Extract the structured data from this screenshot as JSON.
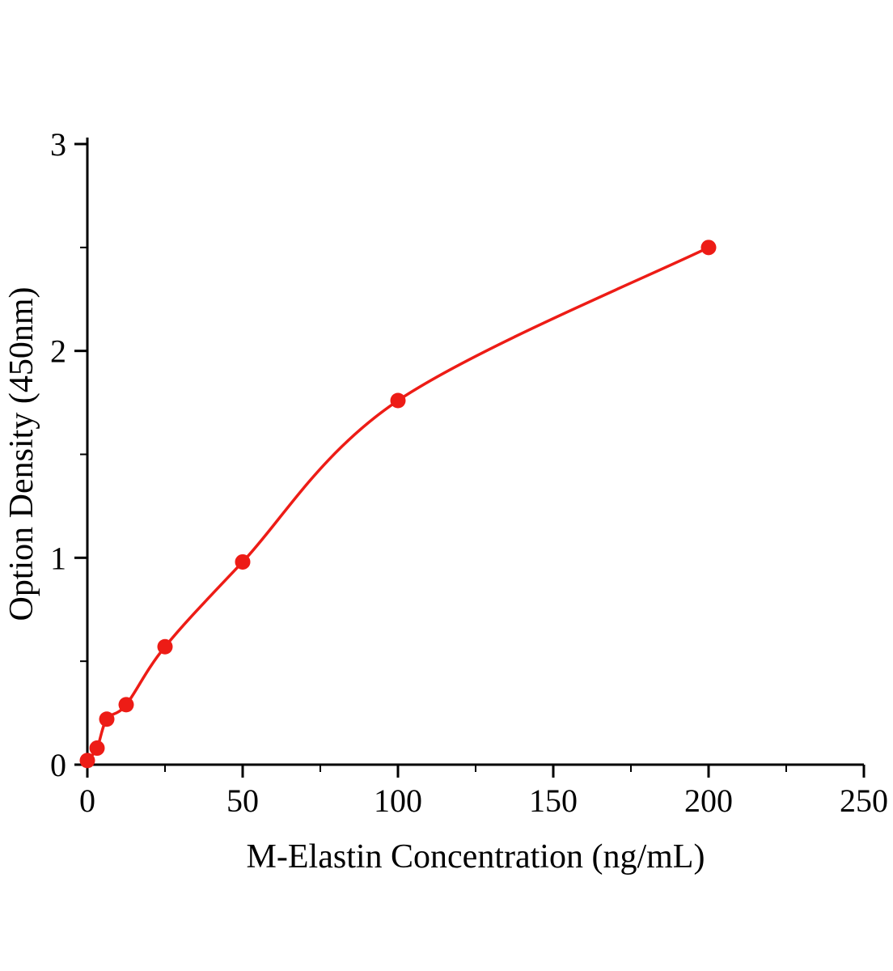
{
  "chart_data": {
    "type": "line",
    "subtype": "scatter-with-fit-curve",
    "title": "",
    "xlabel": "M-Elastin Concentration (ng/mL)",
    "ylabel": "Option Density (450nm)",
    "x": [
      0,
      3.125,
      6.25,
      12.5,
      25,
      50,
      100,
      200
    ],
    "y": [
      0.02,
      0.08,
      0.22,
      0.29,
      0.57,
      0.98,
      1.76,
      2.5
    ],
    "xlim": [
      0,
      250
    ],
    "ylim": [
      0,
      3
    ],
    "xticks": [
      0,
      50,
      100,
      150,
      200,
      250
    ],
    "yticks": [
      0,
      1,
      2,
      3
    ],
    "x_minor_step": 25,
    "y_minor_step": 0.5,
    "grid": false,
    "legend": null,
    "line_color": "#ed1c16",
    "marker_color": "#ed1c16",
    "marker_shape": "circle",
    "axis_color": "#000000"
  }
}
